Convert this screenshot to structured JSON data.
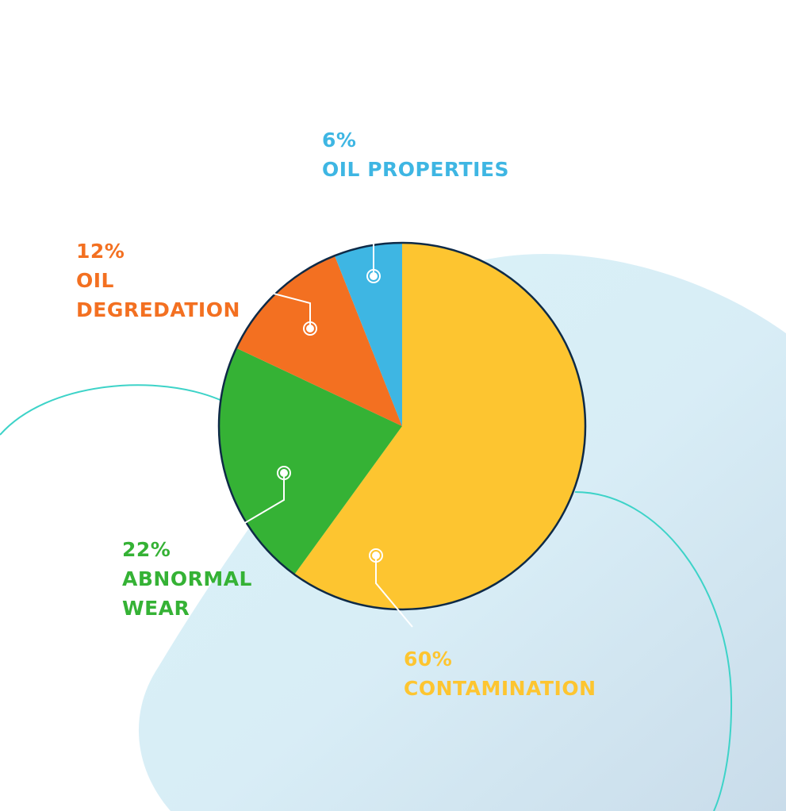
{
  "chart_data": {
    "type": "pie",
    "title": "",
    "start": "top",
    "direction": "clockwise",
    "slices": [
      {
        "label": "CONTAMINATION",
        "value": 60,
        "value_label": "60%",
        "color": "#FDC530"
      },
      {
        "label": "ABNORMAL WEAR",
        "value": 22,
        "value_label": "22%",
        "color": "#35B235"
      },
      {
        "label": "OIL DEGREDATION",
        "value": 12,
        "value_label": "12%",
        "color": "#F37021"
      },
      {
        "label": "OIL PROPERTIES",
        "value": 6,
        "value_label": "6%",
        "color": "#3EB6E3"
      }
    ],
    "outline_color": "#0E2A47"
  },
  "background": {
    "blob_color": "#D6EEF5",
    "accent_line_color": "#3DD3C8"
  }
}
